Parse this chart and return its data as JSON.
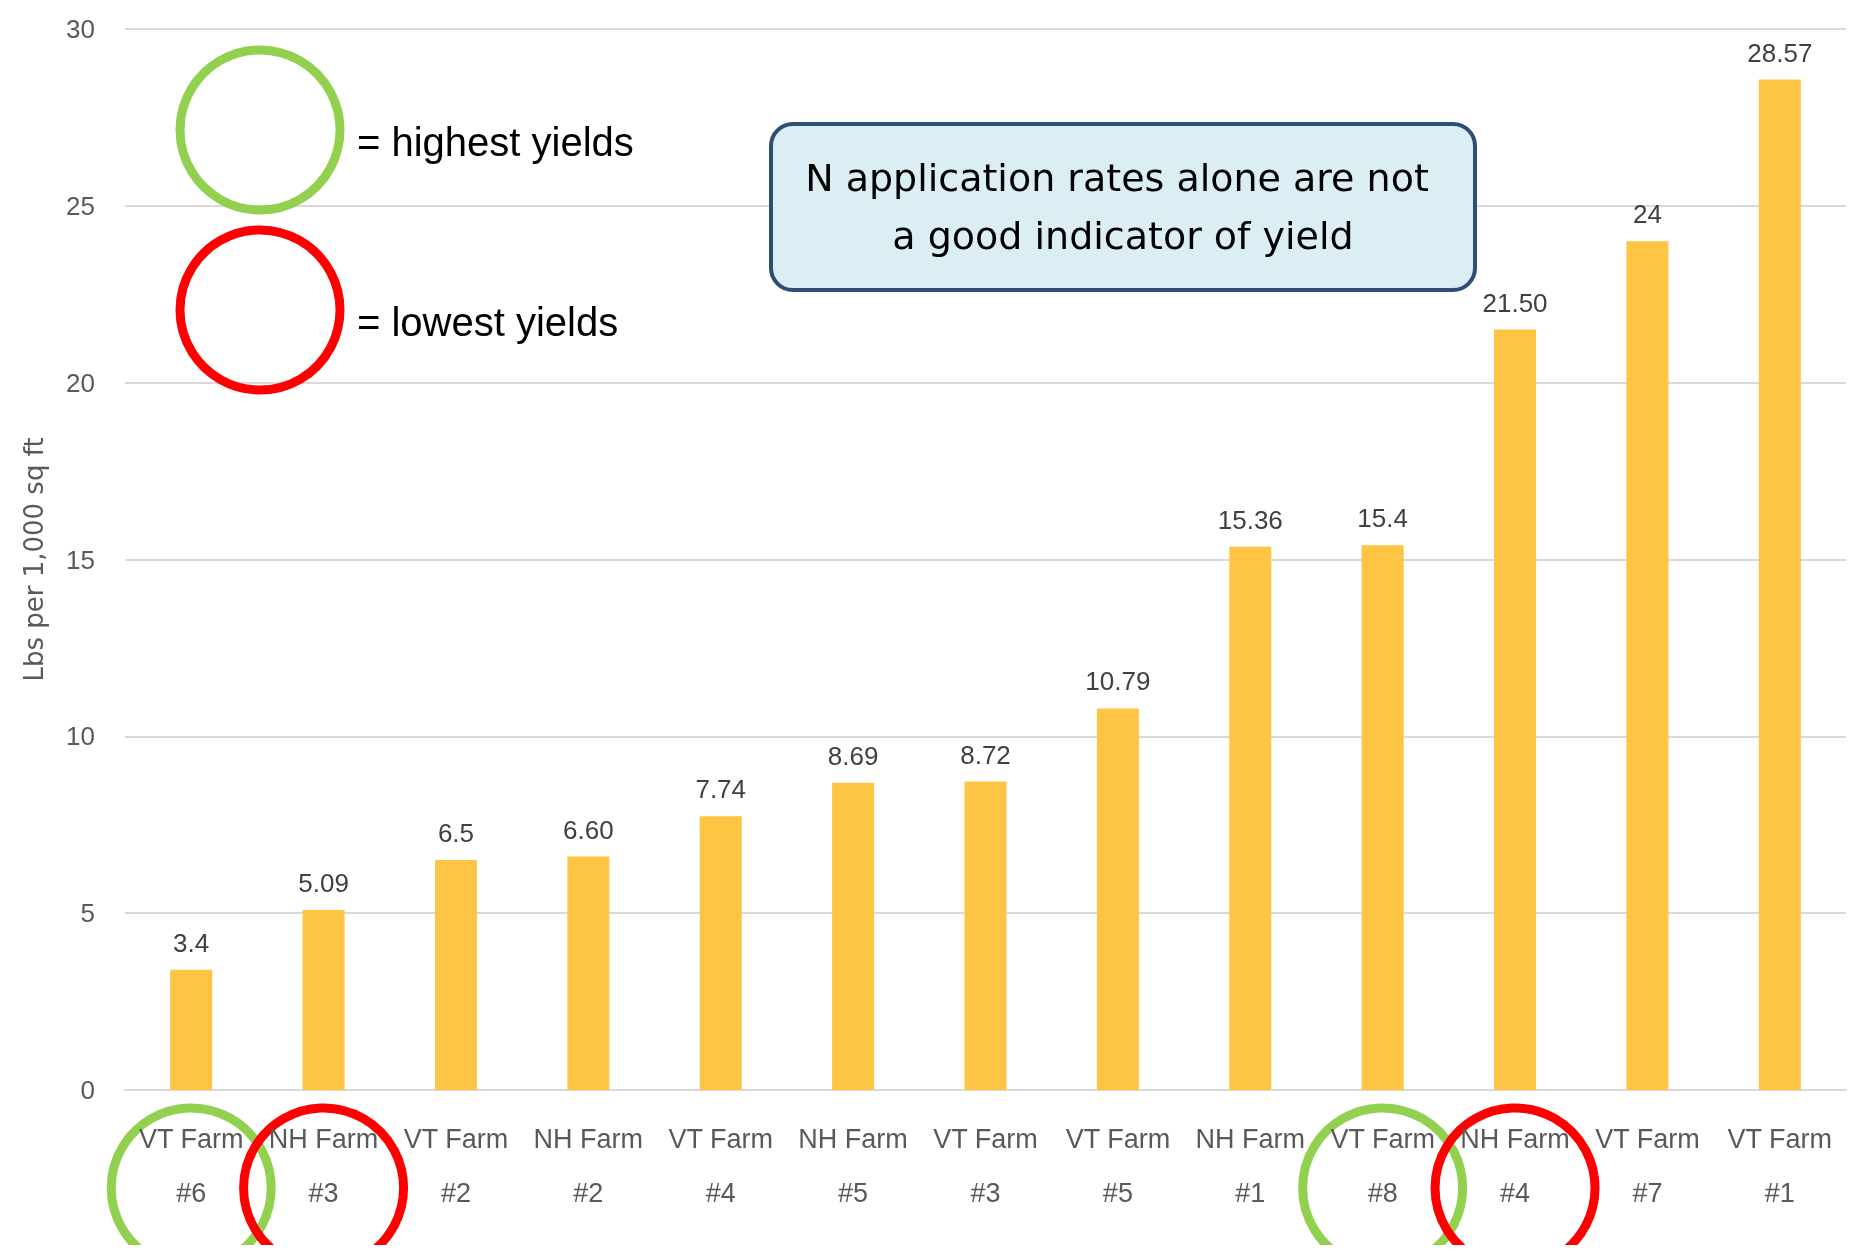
{
  "chart_data": {
    "type": "bar",
    "ylabel": "Lbs per 1,000 sq ft",
    "categories": [
      "VT Farm #6",
      "NH Farm #3",
      "VT Farm #2",
      "NH Farm #2",
      "VT Farm #4",
      "NH Farm #5",
      "VT Farm #3",
      "VT Farm #5",
      "NH Farm #1",
      "VT Farm #8",
      "NH Farm #4",
      "VT Farm #7",
      "VT Farm #1"
    ],
    "values": [
      3.4,
      5.09,
      6.5,
      6.6,
      7.74,
      8.69,
      8.72,
      10.79,
      15.36,
      15.4,
      21.5,
      24,
      28.57
    ],
    "value_labels": [
      "3.4",
      "5.09",
      "6.5",
      "6.60",
      "7.74",
      "8.69",
      "8.72",
      "10.79",
      "15.36",
      "15.4",
      "21.50",
      "24",
      "28.57"
    ],
    "color": "#fdc543",
    "ylim": [
      0,
      30
    ],
    "yticks": [
      0,
      5,
      10,
      15,
      20,
      25,
      30
    ],
    "grid": "y",
    "annotations": [
      "= highest yields",
      "= lowest yields",
      "N application rates alone are not a good indicator of yield"
    ]
  }
}
